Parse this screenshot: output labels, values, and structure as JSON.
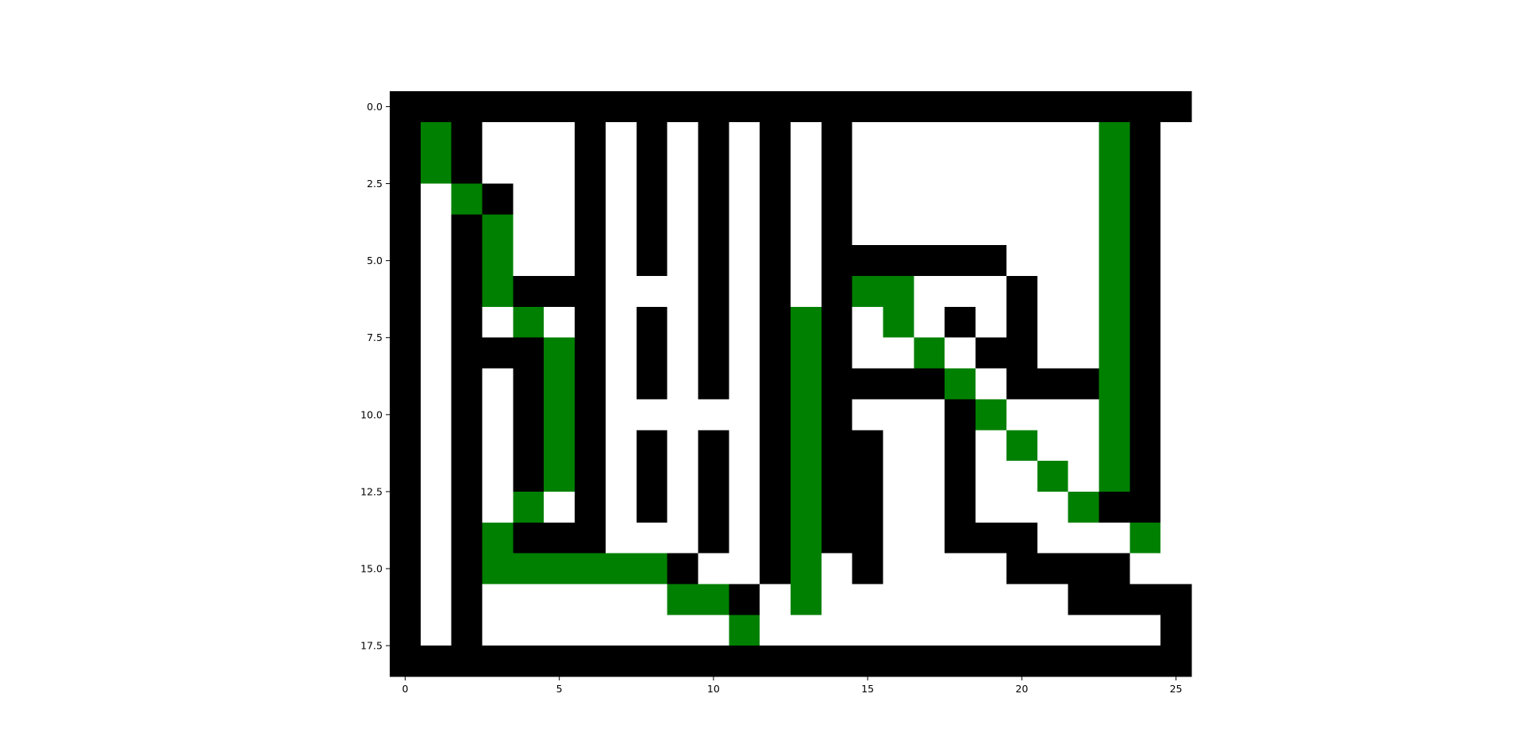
{
  "chart_data": {
    "type": "heatmap",
    "title": "",
    "xlabel": "",
    "ylabel": "",
    "xlim": [
      -0.5,
      25.5
    ],
    "ylim": [
      18.5,
      -0.5
    ],
    "x_ticks": [
      0,
      5,
      10,
      15,
      20,
      25
    ],
    "x_tick_labels": [
      "0",
      "5",
      "10",
      "15",
      "20",
      "25"
    ],
    "y_ticks": [
      0,
      2.5,
      5,
      7.5,
      10,
      12.5,
      15,
      17.5
    ],
    "y_tick_labels": [
      "0.0",
      "2.5",
      "5.0",
      "7.5",
      "10.0",
      "12.5",
      "15.0",
      "17.5"
    ],
    "grid": false,
    "legend": "none",
    "cell_colors": {
      "0": "#ffffff",
      "1": "#000000",
      "2": "#008000"
    },
    "cell_meaning": {
      "0": "open",
      "1": "wall",
      "2": "path"
    },
    "rows": 19,
    "cols": 26,
    "grid_rows": [
      "11111111111111111111111111",
      "12100010101010100000000210",
      "12100010101010100000000210",
      "10210010101010100000000210",
      "10120010101010100000000210",
      "10120010101010111111000210",
      "10121110001010122000100210",
      "10102010101012102010100210",
      "10111210101012100201100210",
      "10101210101012111120111210",
      "10101210000012100012000210",
      "10101210101012110010200210",
      "10101210101012110010020210",
      "10102010101012110010002110",
      "10121110001012110011100020",
      "10122222210012010000111100",
      "10100000022102000000001111",
      "10100000000200000000000001",
      "11111111111111111111111111"
    ]
  }
}
